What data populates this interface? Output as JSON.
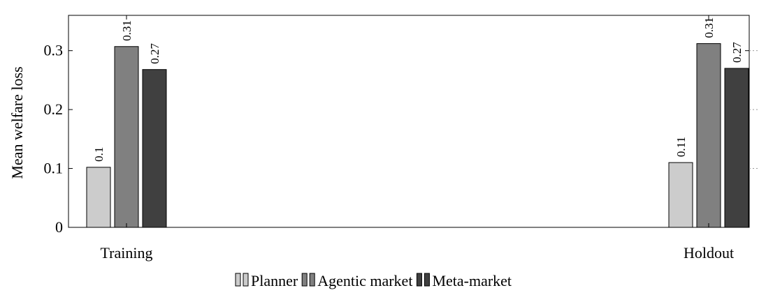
{
  "chart_data": {
    "type": "bar",
    "categories": [
      "Training",
      "Holdout"
    ],
    "series": [
      {
        "name": "Planner",
        "values": [
          0.1,
          0.11
        ],
        "color": "#cccccc"
      },
      {
        "name": "Agentic market",
        "values": [
          0.31,
          0.31
        ],
        "color": "#808080"
      },
      {
        "name": "Meta-market",
        "values": [
          0.27,
          0.27
        ],
        "color": "#404040"
      }
    ],
    "data_labels": [
      [
        "0.1",
        "0.11"
      ],
      [
        "0.31",
        "0.31"
      ],
      [
        "0.27",
        "0.27"
      ]
    ],
    "bar_heights": [
      [
        0.102,
        0.11
      ],
      [
        0.307,
        0.312
      ],
      [
        0.268,
        0.27
      ]
    ],
    "ylabel": "Mean welfare loss",
    "xlabel": "",
    "ylim": [
      0,
      0.36
    ],
    "yticks": [
      0,
      0.1,
      0.2,
      0.3
    ],
    "ytick_labels": [
      "0",
      "0.1",
      "0.2",
      "0.3"
    ],
    "grid": "horizontal dashed on right",
    "legend_position": "bottom-center"
  }
}
